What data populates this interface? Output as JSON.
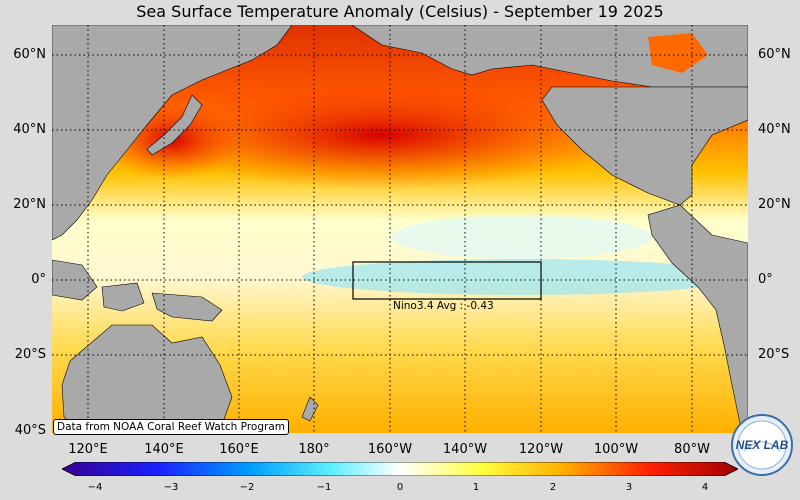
{
  "title": "Sea Surface Temperature Anomaly (Celsius) - September 19 2025",
  "lat_labels": [
    "60°N",
    "40°N",
    "20°N",
    "0°",
    "20°S",
    "40°S"
  ],
  "lon_labels": [
    "120°E",
    "140°E",
    "160°E",
    "180°",
    "160°W",
    "140°W",
    "120°W",
    "100°W",
    "80°W"
  ],
  "colorbar": {
    "ticks": [
      "−4",
      "−3",
      "−2",
      "−1",
      "0",
      "1",
      "2",
      "3",
      "4"
    ],
    "range": [
      -4,
      4
    ]
  },
  "box": {
    "label": "Nino3.4 Avg : -0.43",
    "lat": [
      -5,
      5
    ],
    "lon": [
      "170°W",
      "120°W"
    ]
  },
  "source": "Data from NOAA Coral Reef Watch Program",
  "logo_text": "NEX LAB",
  "colors": {
    "land": "#a9a9a9",
    "ocean_warm": "#ff8a00",
    "ocean_hot": "#d40000",
    "ocean_cool": "#55ccff",
    "background": "#dcdcdc"
  }
}
